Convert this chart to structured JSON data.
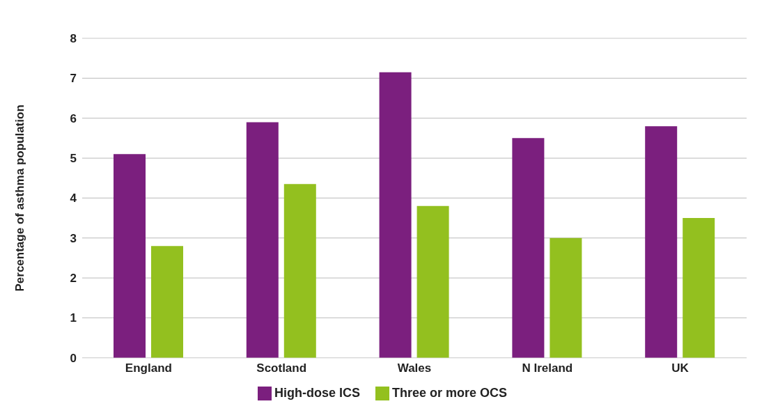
{
  "chart_data": {
    "type": "bar",
    "ylabel": "Percentage of asthma population",
    "categories": [
      "England",
      "Scotland",
      "Wales",
      "N Ireland",
      "UK"
    ],
    "series": [
      {
        "name": "High-dose ICS",
        "color": "#7b1f7e",
        "values": [
          5.1,
          5.9,
          7.15,
          5.5,
          5.8
        ]
      },
      {
        "name": "Three or more OCS",
        "color": "#93c01f",
        "values": [
          2.8,
          4.35,
          3.8,
          3.0,
          3.5
        ]
      }
    ],
    "ylim": [
      0,
      8
    ],
    "yticks": [
      0,
      1,
      2,
      3,
      4,
      5,
      6,
      7,
      8
    ],
    "grid": "y",
    "legend": "bottom"
  }
}
